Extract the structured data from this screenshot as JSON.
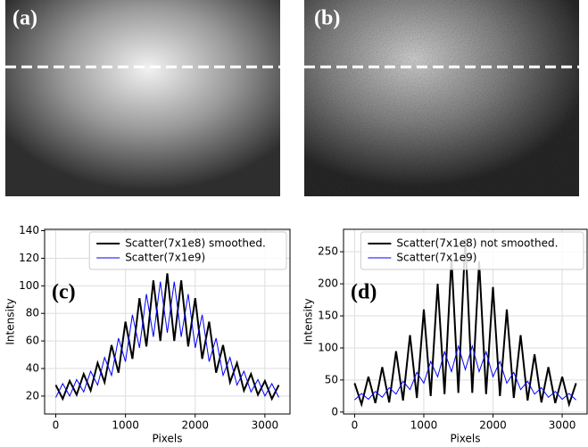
{
  "images": [
    {
      "label": "(a)"
    },
    {
      "label": "(b)"
    }
  ],
  "chart_data": [
    {
      "type": "line",
      "panel_label": "(c)",
      "xlabel": "Pixels",
      "ylabel": "Intensity",
      "xlim": [
        -160,
        3360
      ],
      "ylim": [
        7,
        141
      ],
      "xticks": [
        0,
        1000,
        2000,
        3000
      ],
      "yticks": [
        20,
        40,
        60,
        80,
        100,
        120,
        140
      ],
      "grid": true,
      "legend": "upper right",
      "x": [
        0,
        100,
        200,
        300,
        400,
        500,
        600,
        700,
        800,
        900,
        1000,
        1100,
        1200,
        1300,
        1400,
        1500,
        1600,
        1700,
        1800,
        1900,
        2000,
        2100,
        2200,
        2300,
        2400,
        2500,
        2600,
        2700,
        2800,
        2900,
        3000,
        3100,
        3200
      ],
      "series": [
        {
          "name": "Scatter(7x1e8) smoothed.",
          "color": "#000000",
          "width": 2,
          "values": [
            28,
            18,
            31,
            21,
            36,
            24,
            44,
            30,
            57,
            37,
            74,
            47,
            91,
            56,
            104,
            60,
            109,
            60,
            104,
            56,
            91,
            47,
            74,
            37,
            57,
            30,
            44,
            24,
            36,
            21,
            31,
            18,
            28
          ]
        },
        {
          "name": "Scatter(7x1e9)",
          "color": "#0000ff",
          "width": 1,
          "values": [
            19,
            29,
            20,
            32,
            23,
            38,
            28,
            48,
            35,
            62,
            45,
            79,
            55,
            94,
            63,
            103,
            66,
            103,
            63,
            94,
            55,
            79,
            45,
            62,
            35,
            48,
            28,
            38,
            23,
            32,
            20,
            29,
            19
          ]
        }
      ]
    },
    {
      "type": "line",
      "panel_label": "(d)",
      "xlabel": "Pixels",
      "ylabel": "Intensity",
      "xlim": [
        -160,
        3360
      ],
      "ylim": [
        -3,
        285
      ],
      "xticks": [
        0,
        1000,
        2000,
        3000
      ],
      "yticks": [
        0,
        50,
        100,
        150,
        200,
        250
      ],
      "grid": true,
      "legend": "upper right",
      "x": [
        0,
        100,
        200,
        300,
        400,
        500,
        600,
        700,
        800,
        900,
        1000,
        1100,
        1200,
        1300,
        1400,
        1500,
        1600,
        1700,
        1800,
        1900,
        2000,
        2100,
        2200,
        2300,
        2400,
        2500,
        2600,
        2700,
        2800,
        2900,
        3000,
        3100,
        3200
      ],
      "series": [
        {
          "name": "Scatter(7x1e8) not smoothed.",
          "color": "#000000",
          "width": 2,
          "values": [
            45,
            12,
            55,
            14,
            70,
            15,
            95,
            18,
            120,
            22,
            160,
            25,
            200,
            28,
            240,
            30,
            270,
            30,
            235,
            28,
            195,
            25,
            160,
            22,
            120,
            18,
            90,
            15,
            70,
            14,
            55,
            12,
            45
          ]
        },
        {
          "name": "Scatter(7x1e9)",
          "color": "#0000ff",
          "width": 1,
          "values": [
            19,
            29,
            20,
            32,
            23,
            38,
            28,
            48,
            35,
            62,
            45,
            79,
            55,
            94,
            63,
            103,
            66,
            103,
            63,
            94,
            55,
            79,
            45,
            62,
            35,
            48,
            28,
            38,
            23,
            32,
            20,
            29,
            19
          ]
        }
      ]
    }
  ]
}
